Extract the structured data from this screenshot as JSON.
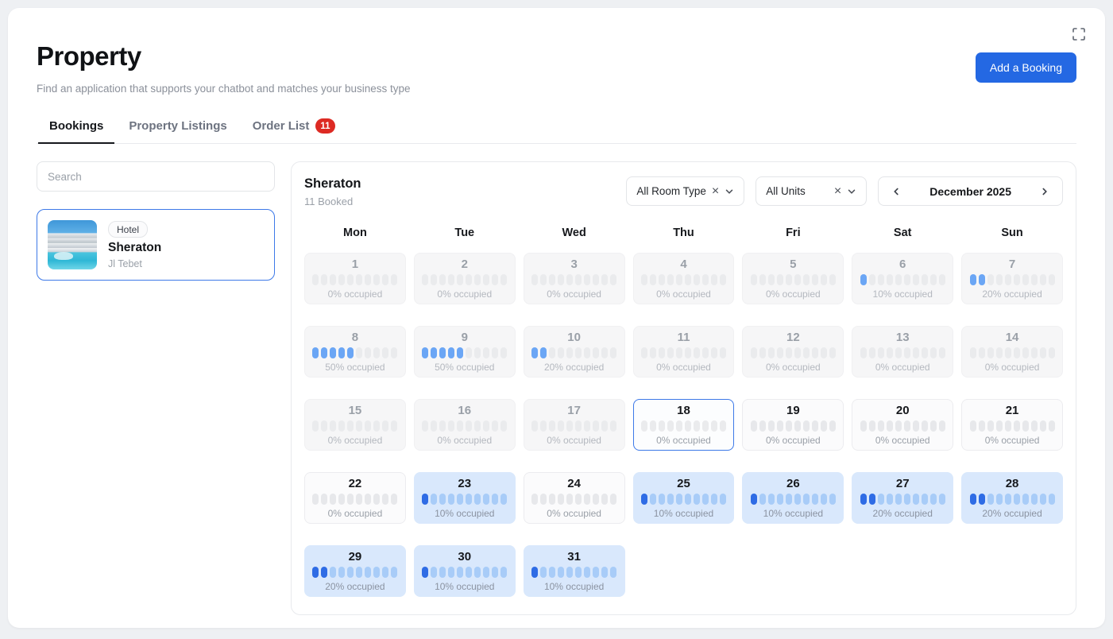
{
  "header": {
    "title": "Property",
    "subtitle": "Find an application that supports your chatbot and matches your business type",
    "add_booking_label": "Add a Booking"
  },
  "tabs": [
    {
      "label": "Bookings",
      "active": true
    },
    {
      "label": "Property Listings",
      "active": false
    },
    {
      "label": "Order List",
      "active": false,
      "badge": "11"
    }
  ],
  "sidebar": {
    "search_placeholder": "Search",
    "property": {
      "badge": "Hotel",
      "name": "Sheraton",
      "address": "Jl Tebet"
    }
  },
  "calendar": {
    "property_name": "Sheraton",
    "booked_summary": "11 Booked",
    "filters": {
      "room_type": "All Room Type",
      "units": "All Units"
    },
    "month": "December 2025",
    "weekdays": [
      "Mon",
      "Tue",
      "Wed",
      "Thu",
      "Fri",
      "Sat",
      "Sun"
    ],
    "segments_per_day": 10,
    "occupied_suffix": "% occupied",
    "days": [
      {
        "day": 1,
        "occupancy": 0,
        "state": "past"
      },
      {
        "day": 2,
        "occupancy": 0,
        "state": "past"
      },
      {
        "day": 3,
        "occupancy": 0,
        "state": "past"
      },
      {
        "day": 4,
        "occupancy": 0,
        "state": "past"
      },
      {
        "day": 5,
        "occupancy": 0,
        "state": "past"
      },
      {
        "day": 6,
        "occupancy": 10,
        "state": "past"
      },
      {
        "day": 7,
        "occupancy": 20,
        "state": "past"
      },
      {
        "day": 8,
        "occupancy": 50,
        "state": "past"
      },
      {
        "day": 9,
        "occupancy": 50,
        "state": "past"
      },
      {
        "day": 10,
        "occupancy": 20,
        "state": "past"
      },
      {
        "day": 11,
        "occupancy": 0,
        "state": "past"
      },
      {
        "day": 12,
        "occupancy": 0,
        "state": "past"
      },
      {
        "day": 13,
        "occupancy": 0,
        "state": "past"
      },
      {
        "day": 14,
        "occupancy": 0,
        "state": "past"
      },
      {
        "day": 15,
        "occupancy": 0,
        "state": "past"
      },
      {
        "day": 16,
        "occupancy": 0,
        "state": "past"
      },
      {
        "day": 17,
        "occupancy": 0,
        "state": "past"
      },
      {
        "day": 18,
        "occupancy": 0,
        "state": "today"
      },
      {
        "day": 19,
        "occupancy": 0,
        "state": "future"
      },
      {
        "day": 20,
        "occupancy": 0,
        "state": "future"
      },
      {
        "day": 21,
        "occupancy": 0,
        "state": "future"
      },
      {
        "day": 22,
        "occupancy": 0,
        "state": "future"
      },
      {
        "day": 23,
        "occupancy": 10,
        "state": "booked"
      },
      {
        "day": 24,
        "occupancy": 0,
        "state": "future"
      },
      {
        "day": 25,
        "occupancy": 10,
        "state": "booked"
      },
      {
        "day": 26,
        "occupancy": 10,
        "state": "booked"
      },
      {
        "day": 27,
        "occupancy": 20,
        "state": "booked"
      },
      {
        "day": 28,
        "occupancy": 20,
        "state": "booked"
      },
      {
        "day": 29,
        "occupancy": 20,
        "state": "booked"
      },
      {
        "day": 30,
        "occupancy": 10,
        "state": "booked"
      },
      {
        "day": 31,
        "occupancy": 10,
        "state": "booked"
      }
    ]
  },
  "colors": {
    "accent_blue": "#2468e3",
    "badge_red": "#dd2a23",
    "booked_cell_bg": "#d9e8fc",
    "booked_fill": "#2f6ce5",
    "booked_empty": "#a8ccf8",
    "past_fill": "#6ba6f5",
    "today_border": "#3d79e8"
  }
}
